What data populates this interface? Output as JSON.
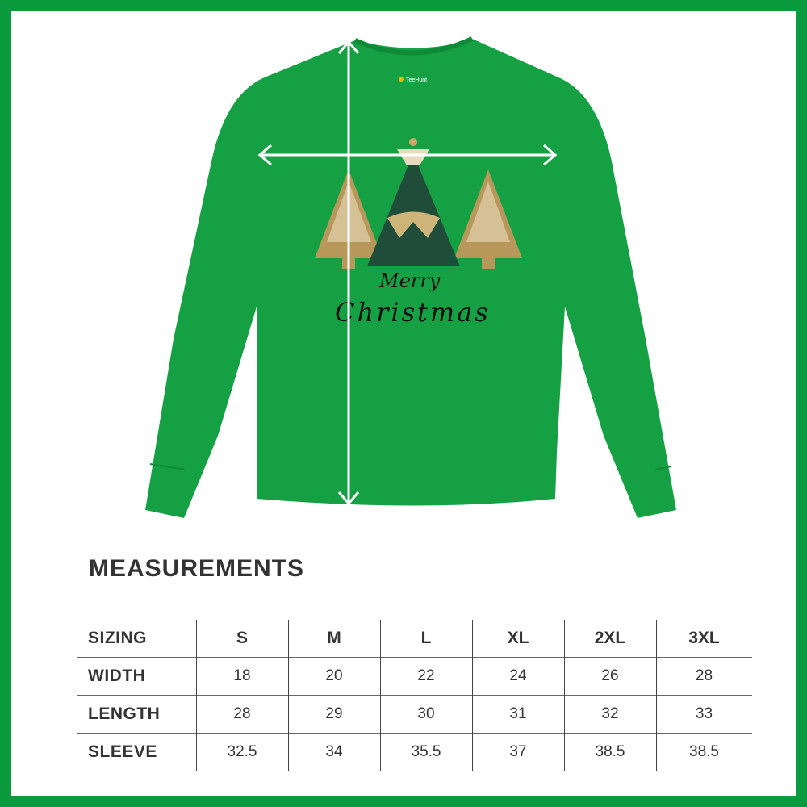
{
  "product": {
    "shirt_color": "#15a043",
    "border_color": "#0c9a3e",
    "neck_label": "TeeHunt",
    "design_line1": "Merry",
    "design_line2": "Christmas"
  },
  "measurements": {
    "title": "MEASUREMENTS",
    "header": [
      "SIZING",
      "S",
      "M",
      "L",
      "XL",
      "2XL",
      "3XL"
    ],
    "rows": [
      [
        "WIDTH",
        "18",
        "20",
        "22",
        "24",
        "26",
        "28"
      ],
      [
        "LENGTH",
        "28",
        "29",
        "30",
        "31",
        "32",
        "33"
      ],
      [
        "SLEEVE",
        "32.5",
        "34",
        "35.5",
        "37",
        "38.5",
        "38.5"
      ]
    ]
  }
}
